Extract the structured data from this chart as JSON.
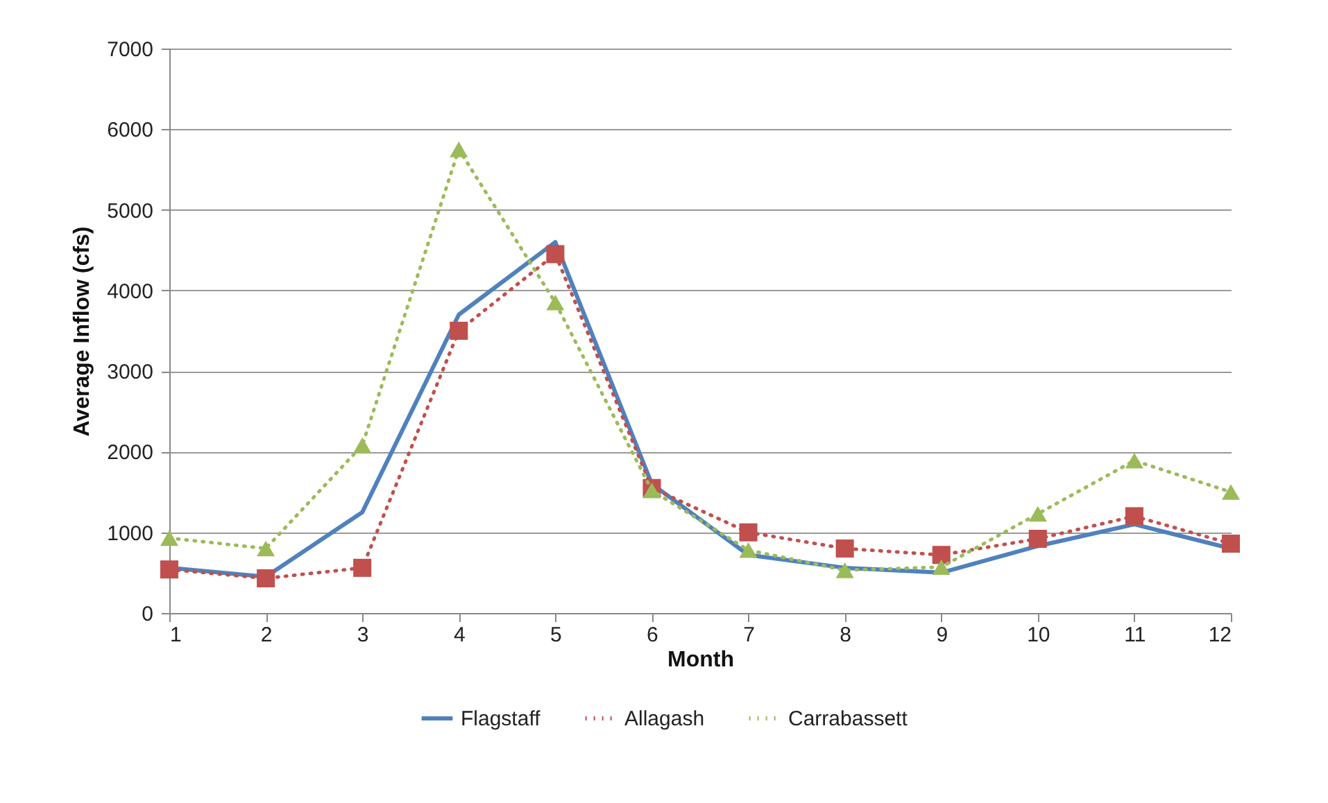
{
  "chart_data": {
    "type": "line",
    "xlabel": "Month",
    "ylabel": "Average Inflow (cfs)",
    "x": [
      1,
      2,
      3,
      4,
      5,
      6,
      7,
      8,
      9,
      10,
      11,
      12
    ],
    "xlim": [
      1,
      12
    ],
    "xticks": [
      1,
      2,
      3,
      4,
      5,
      6,
      7,
      8,
      9,
      10,
      11,
      12
    ],
    "ylim": [
      0,
      7000
    ],
    "yticks": [
      0,
      1000,
      2000,
      3000,
      4000,
      5000,
      6000,
      7000
    ],
    "grid": "y",
    "legend": "bottom",
    "series": [
      {
        "name": "Flagstaff",
        "color": "#4f81bd",
        "line_style": "solid",
        "marker": "none",
        "values": [
          560,
          450,
          1250,
          3700,
          4600,
          1600,
          720,
          560,
          500,
          830,
          1100,
          800
        ]
      },
      {
        "name": "Allagash",
        "color": "#c0504d",
        "line_style": "dotted",
        "marker": "square",
        "values": [
          540,
          430,
          560,
          3500,
          4450,
          1550,
          1000,
          800,
          720,
          920,
          1200,
          860
        ]
      },
      {
        "name": "Carrabassett",
        "color": "#9bbb59",
        "line_style": "dotted",
        "marker": "triangle",
        "values": [
          930,
          800,
          2080,
          5750,
          3850,
          1520,
          780,
          530,
          570,
          1230,
          1890,
          1500
        ]
      }
    ]
  }
}
